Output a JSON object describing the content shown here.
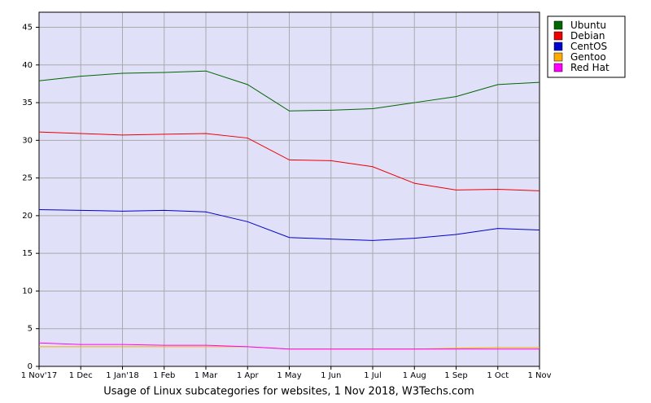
{
  "chart_data": {
    "type": "line",
    "title": "Usage of Linux subcategories for websites, 1 Nov 2018, W3Techs.com",
    "categories": [
      "1 Nov'17",
      "1 Dec",
      "1 Jan'18",
      "1 Feb",
      "1 Mar",
      "1 Apr",
      "1 May",
      "1 Jun",
      "1 Jul",
      "1 Aug",
      "1 Sep",
      "1 Oct",
      "1 Nov"
    ],
    "series": [
      {
        "name": "Ubuntu",
        "color": "#006600",
        "values": [
          37.9,
          38.5,
          38.9,
          39.0,
          39.2,
          37.4,
          33.9,
          34.0,
          34.2,
          35.0,
          35.8,
          37.4,
          37.7
        ]
      },
      {
        "name": "Debian",
        "color": "#ee0000",
        "values": [
          31.1,
          30.9,
          30.7,
          30.8,
          30.9,
          30.3,
          27.4,
          27.3,
          26.5,
          24.3,
          23.4,
          23.5,
          23.3
        ]
      },
      {
        "name": "CentOS",
        "color": "#0000cc",
        "values": [
          20.8,
          20.7,
          20.6,
          20.7,
          20.5,
          19.2,
          17.1,
          16.9,
          16.7,
          17.0,
          17.5,
          18.3,
          18.1
        ]
      },
      {
        "name": "Gentoo",
        "color": "#ffaa00",
        "values": [
          2.6,
          2.6,
          2.6,
          2.6,
          2.6,
          2.6,
          2.3,
          2.3,
          2.3,
          2.3,
          2.4,
          2.5,
          2.5
        ]
      },
      {
        "name": "Red Hat",
        "color": "#ff00ff",
        "values": [
          3.1,
          2.9,
          2.9,
          2.8,
          2.8,
          2.6,
          2.3,
          2.3,
          2.3,
          2.3,
          2.3,
          2.3,
          2.3
        ]
      }
    ],
    "ylim": [
      0,
      47
    ],
    "yticks": [
      0,
      5,
      10,
      15,
      20,
      25,
      30,
      35,
      40,
      45
    ],
    "grid": true,
    "legend": "top-right"
  }
}
